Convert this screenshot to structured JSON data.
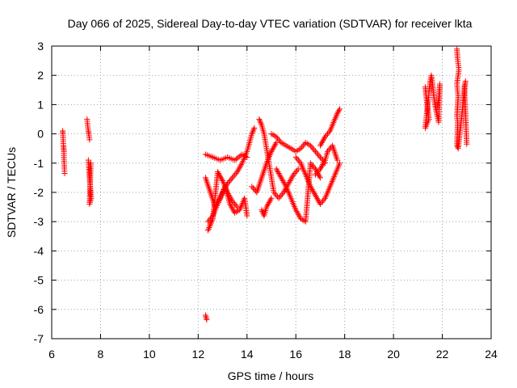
{
  "chart_data": {
    "type": "scatter",
    "title": "Day 066 of 2025, Sidereal Day-to-day VTEC variation (SDTVAR) for receiver lkta",
    "xlabel": "GPS time / hours",
    "ylabel": "SDTVAR / TECUs",
    "xlim": [
      6,
      24
    ],
    "ylim": [
      -7,
      3
    ],
    "xticks": [
      6,
      8,
      10,
      12,
      14,
      16,
      18,
      20,
      22,
      24
    ],
    "yticks": [
      -7,
      -6,
      -5,
      -4,
      -3,
      -2,
      -1,
      0,
      1,
      2,
      3
    ],
    "grid": true,
    "marker": "+",
    "color": "#ff0000",
    "series": [
      {
        "name": "SDTVAR",
        "segments": [
          [
            [
              6.45,
              0.1
            ],
            [
              6.46,
              0.0
            ],
            [
              6.47,
              -0.2
            ],
            [
              6.48,
              -0.4
            ],
            [
              6.49,
              -0.5
            ],
            [
              6.5,
              -0.6
            ],
            [
              6.5,
              -0.8
            ],
            [
              6.51,
              -1.0
            ],
            [
              6.52,
              -1.2
            ],
            [
              6.53,
              -1.35
            ]
          ],
          [
            [
              7.45,
              0.5
            ],
            [
              7.47,
              0.3
            ],
            [
              7.5,
              0.1
            ],
            [
              7.52,
              0.0
            ],
            [
              7.55,
              -0.2
            ]
          ],
          [
            [
              7.5,
              -0.9
            ],
            [
              7.52,
              -1.1
            ],
            [
              7.55,
              -1.5
            ],
            [
              7.58,
              -1.8
            ],
            [
              7.6,
              -2.0
            ],
            [
              7.62,
              -2.2
            ],
            [
              7.55,
              -2.4
            ],
            [
              7.6,
              -1.0
            ]
          ],
          [
            [
              12.3,
              -6.2
            ],
            [
              12.35,
              -6.35
            ]
          ],
          [
            [
              12.4,
              -3.0
            ],
            [
              12.6,
              -2.8
            ],
            [
              12.8,
              -2.4
            ],
            [
              13.0,
              -2.0
            ],
            [
              13.2,
              -1.7
            ],
            [
              13.4,
              -1.5
            ],
            [
              13.6,
              -1.3
            ],
            [
              13.8,
              -1.0
            ],
            [
              14.0,
              -0.6
            ],
            [
              14.1,
              -0.3
            ],
            [
              14.2,
              0.0
            ],
            [
              14.3,
              0.2
            ]
          ],
          [
            [
              12.3,
              -0.7
            ],
            [
              12.6,
              -0.8
            ],
            [
              12.9,
              -0.9
            ],
            [
              13.2,
              -0.8
            ],
            [
              13.5,
              -0.9
            ],
            [
              13.8,
              -0.7
            ],
            [
              14.0,
              -0.8
            ]
          ],
          [
            [
              12.3,
              -1.5
            ],
            [
              12.5,
              -2.0
            ],
            [
              12.7,
              -2.5
            ],
            [
              12.9,
              -2.2
            ],
            [
              13.1,
              -1.8
            ],
            [
              13.3,
              -2.4
            ],
            [
              13.5,
              -2.7
            ],
            [
              13.7,
              -2.6
            ],
            [
              13.9,
              -2.2
            ],
            [
              14.0,
              -2.8
            ]
          ],
          [
            [
              12.4,
              -3.3
            ],
            [
              12.5,
              -3.1
            ],
            [
              12.6,
              -2.9
            ],
            [
              12.8,
              -1.3
            ],
            [
              13.0,
              -1.6
            ],
            [
              13.2,
              -2.0
            ],
            [
              13.4,
              -2.3
            ],
            [
              13.6,
              -2.5
            ]
          ],
          [
            [
              14.5,
              0.5
            ],
            [
              14.6,
              0.3
            ],
            [
              14.7,
              0.0
            ],
            [
              14.8,
              -0.5
            ],
            [
              14.9,
              -1.0
            ],
            [
              15.0,
              -1.5
            ],
            [
              15.1,
              -2.0
            ],
            [
              15.3,
              -2.2
            ],
            [
              15.5,
              -2.0
            ],
            [
              15.7,
              -1.7
            ],
            [
              15.9,
              -1.4
            ],
            [
              16.1,
              -1.2
            ]
          ],
          [
            [
              14.6,
              -2.6
            ],
            [
              14.7,
              -2.8
            ],
            [
              14.8,
              -2.5
            ],
            [
              15.0,
              -2.2
            ]
          ],
          [
            [
              15.0,
              0.0
            ],
            [
              15.2,
              -0.1
            ],
            [
              15.4,
              -0.3
            ],
            [
              15.6,
              -0.4
            ],
            [
              15.8,
              -0.5
            ],
            [
              16.0,
              -0.6
            ],
            [
              16.2,
              -0.5
            ],
            [
              16.4,
              -0.3
            ],
            [
              16.6,
              -0.4
            ],
            [
              16.8,
              -0.6
            ],
            [
              17.0,
              -0.8
            ],
            [
              17.2,
              -1.0
            ]
          ],
          [
            [
              14.2,
              -1.8
            ],
            [
              14.4,
              -2.0
            ],
            [
              14.6,
              -1.5
            ],
            [
              14.8,
              -1.0
            ],
            [
              15.0,
              -0.6
            ],
            [
              15.2,
              -0.3
            ]
          ],
          [
            [
              15.2,
              -1.2
            ],
            [
              15.4,
              -1.5
            ],
            [
              15.6,
              -1.8
            ],
            [
              15.8,
              -2.2
            ],
            [
              16.0,
              -2.6
            ],
            [
              16.2,
              -2.9
            ],
            [
              16.4,
              -3.0
            ],
            [
              16.6,
              -1.0
            ],
            [
              16.8,
              -1.2
            ],
            [
              17.0,
              -1.5
            ]
          ],
          [
            [
              16.0,
              -0.8
            ],
            [
              16.2,
              -1.0
            ],
            [
              16.4,
              -1.4
            ],
            [
              16.6,
              -1.8
            ],
            [
              16.8,
              -2.1
            ],
            [
              17.0,
              -2.4
            ],
            [
              17.2,
              -2.2
            ],
            [
              17.4,
              -1.8
            ],
            [
              17.6,
              -1.4
            ],
            [
              17.8,
              -1.0
            ]
          ],
          [
            [
              16.8,
              -1.4
            ],
            [
              17.0,
              -1.2
            ],
            [
              17.2,
              -0.9
            ],
            [
              17.3,
              -0.6
            ],
            [
              17.5,
              -0.4
            ],
            [
              17.7,
              -0.9
            ]
          ],
          [
            [
              17.0,
              -0.4
            ],
            [
              17.2,
              -0.1
            ],
            [
              17.4,
              0.1
            ],
            [
              17.6,
              0.5
            ],
            [
              17.7,
              0.7
            ],
            [
              17.8,
              0.85
            ]
          ],
          [
            [
              21.3,
              1.6
            ],
            [
              21.35,
              1.2
            ],
            [
              21.4,
              0.9
            ],
            [
              21.45,
              0.5
            ],
            [
              21.3,
              0.2
            ],
            [
              21.5,
              1.8
            ],
            [
              21.55,
              2.0
            ],
            [
              21.6,
              1.7
            ],
            [
              21.65,
              1.3
            ],
            [
              21.7,
              1.0
            ],
            [
              21.8,
              0.6
            ],
            [
              21.85,
              0.4
            ],
            [
              21.9,
              1.7
            ],
            [
              21.85,
              1.2
            ],
            [
              21.8,
              0.9
            ]
          ],
          [
            [
              22.6,
              2.9
            ],
            [
              22.62,
              2.6
            ],
            [
              22.65,
              2.4
            ],
            [
              22.68,
              2.2
            ],
            [
              22.6,
              1.7
            ],
            [
              22.62,
              1.5
            ],
            [
              22.65,
              1.3
            ],
            [
              22.6,
              0.6
            ],
            [
              22.63,
              0.4
            ],
            [
              22.6,
              -0.4
            ],
            [
              22.65,
              -0.5
            ],
            [
              22.95,
              1.8
            ],
            [
              22.9,
              1.6
            ],
            [
              22.95,
              0.7
            ],
            [
              23.0,
              -0.35
            ]
          ]
        ]
      }
    ]
  }
}
